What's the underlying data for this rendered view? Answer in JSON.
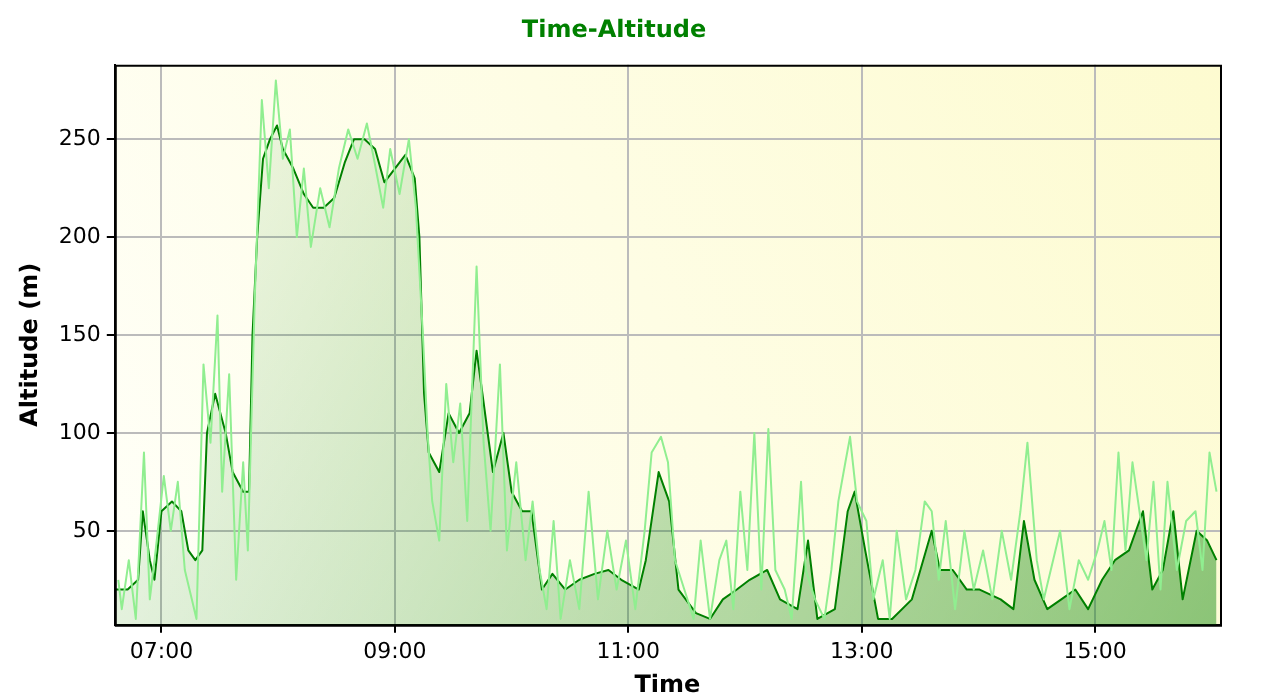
{
  "chart_data": {
    "type": "area",
    "title": "Time-Altitude",
    "xlabel": "Time",
    "ylabel": "Altitude (m)",
    "xlim": [
      6.6,
      16.07
    ],
    "xticks": [
      {
        "value": 7,
        "label": "07:00"
      },
      {
        "value": 9,
        "label": "09:00"
      },
      {
        "value": 11,
        "label": "11:00"
      },
      {
        "value": 13,
        "label": "13:00"
      },
      {
        "value": 15,
        "label": "15:00"
      }
    ],
    "ylim": [
      2,
      288
    ],
    "yticks": [
      50,
      100,
      150,
      200,
      250
    ],
    "grid": true,
    "legend": false,
    "marker": "none",
    "series": [
      {
        "type": "line",
        "color": "#90ee90",
        "x": [
          6.63,
          6.66,
          6.72,
          6.78,
          6.85,
          6.9,
          6.95,
          7.02,
          7.08,
          7.14,
          7.2,
          7.26,
          7.3,
          7.36,
          7.42,
          7.48,
          7.52,
          7.58,
          7.64,
          7.7,
          7.74,
          7.8,
          7.86,
          7.92,
          7.98,
          8.04,
          8.1,
          8.16,
          8.22,
          8.28,
          8.36,
          8.44,
          8.52,
          8.6,
          8.68,
          8.76,
          8.82,
          8.9,
          8.96,
          9.04,
          9.12,
          9.18,
          9.24,
          9.28,
          9.32,
          9.38,
          9.44,
          9.5,
          9.56,
          9.62,
          9.7,
          9.76,
          9.82,
          9.9,
          9.96,
          10.04,
          10.12,
          10.18,
          10.24,
          10.3,
          10.36,
          10.42,
          10.5,
          10.58,
          10.66,
          10.74,
          10.82,
          10.9,
          10.98,
          11.06,
          11.14,
          11.2,
          11.28,
          11.34,
          11.4,
          11.48,
          11.56,
          11.62,
          11.7,
          11.78,
          11.84,
          11.9,
          11.96,
          12.02,
          12.08,
          12.14,
          12.2,
          12.26,
          12.34,
          12.4,
          12.48,
          12.52,
          12.6,
          12.68,
          12.74,
          12.8,
          12.86,
          12.9,
          12.96,
          13.04,
          13.1,
          13.18,
          13.24,
          13.3,
          13.38,
          13.46,
          13.54,
          13.6,
          13.66,
          13.72,
          13.8,
          13.88,
          13.96,
          14.04,
          14.12,
          14.2,
          14.28,
          14.36,
          14.42,
          14.5,
          14.56,
          14.64,
          14.7,
          14.78,
          14.86,
          14.94,
          15.02,
          15.08,
          15.14,
          15.2,
          15.26,
          15.32,
          15.38,
          15.44,
          15.5,
          15.56,
          15.62,
          15.7,
          15.78,
          15.86,
          15.92,
          15.98,
          16.04
        ],
        "values": [
          25,
          10,
          35,
          5,
          90,
          15,
          40,
          78,
          50,
          75,
          30,
          15,
          5,
          135,
          95,
          160,
          70,
          130,
          25,
          85,
          40,
          170,
          270,
          225,
          280,
          240,
          255,
          200,
          235,
          195,
          225,
          205,
          235,
          255,
          240,
          258,
          240,
          215,
          245,
          222,
          250,
          215,
          150,
          100,
          65,
          45,
          125,
          85,
          115,
          55,
          185,
          95,
          50,
          135,
          40,
          85,
          35,
          65,
          30,
          10,
          55,
          5,
          35,
          10,
          70,
          15,
          50,
          20,
          45,
          10,
          50,
          90,
          98,
          85,
          35,
          20,
          5,
          45,
          5,
          35,
          45,
          10,
          70,
          30,
          100,
          20,
          102,
          30,
          20,
          5,
          75,
          30,
          15,
          5,
          30,
          65,
          85,
          98,
          65,
          55,
          15,
          35,
          5,
          50,
          15,
          30,
          65,
          60,
          25,
          55,
          10,
          50,
          20,
          40,
          15,
          50,
          25,
          60,
          95,
          35,
          15,
          35,
          50,
          10,
          35,
          25,
          40,
          55,
          30,
          90,
          40,
          85,
          60,
          35,
          75,
          20,
          75,
          30,
          55,
          60,
          30,
          90,
          70
        ]
      },
      {
        "color": "#008000",
        "x": [
          6.6,
          6.71,
          6.8,
          6.84,
          6.9,
          6.94,
          7.0,
          7.09,
          7.17,
          7.23,
          7.29,
          7.35,
          7.39,
          7.46,
          7.55,
          7.61,
          7.7,
          7.75,
          7.78,
          7.82,
          7.87,
          7.93,
          7.99,
          8.04,
          8.13,
          8.22,
          8.3,
          8.39,
          8.48,
          8.57,
          8.65,
          8.74,
          8.83,
          8.91,
          9.0,
          9.09,
          9.17,
          9.21,
          9.25,
          9.29,
          9.38,
          9.46,
          9.55,
          9.64,
          9.7,
          9.75,
          9.84,
          9.93,
          10.0,
          10.09,
          10.17,
          10.26,
          10.35,
          10.46,
          10.58,
          10.71,
          10.83,
          10.94,
          11.09,
          11.15,
          11.26,
          11.35,
          11.43,
          11.58,
          11.7,
          11.81,
          11.93,
          12.04,
          12.19,
          12.3,
          12.45,
          12.54,
          12.62,
          12.77,
          12.88,
          12.94,
          13.03,
          13.14,
          13.26,
          13.43,
          13.6,
          13.67,
          13.78,
          13.9,
          14.01,
          14.19,
          14.3,
          14.39,
          14.48,
          14.59,
          14.71,
          14.83,
          14.94,
          15.06,
          15.17,
          15.29,
          15.41,
          15.49,
          15.58,
          15.67,
          15.75,
          15.87,
          15.96,
          16.04
        ],
        "values": [
          20,
          20,
          25,
          60,
          35,
          25,
          60,
          65,
          60,
          40,
          35,
          40,
          100,
          120,
          100,
          80,
          70,
          70,
          150,
          200,
          240,
          250,
          257,
          245,
          235,
          222,
          215,
          215,
          220,
          238,
          250,
          250,
          245,
          228,
          235,
          242,
          230,
          200,
          120,
          90,
          80,
          110,
          100,
          110,
          142,
          120,
          80,
          100,
          70,
          60,
          60,
          20,
          28,
          20,
          25,
          28,
          30,
          25,
          20,
          35,
          80,
          65,
          20,
          8,
          5,
          15,
          20,
          25,
          30,
          15,
          10,
          45,
          5,
          10,
          60,
          70,
          40,
          5,
          5,
          15,
          50,
          30,
          30,
          20,
          20,
          15,
          10,
          55,
          25,
          10,
          15,
          20,
          10,
          25,
          35,
          40,
          60,
          20,
          30,
          60,
          15,
          50,
          45,
          35
        ]
      }
    ]
  }
}
